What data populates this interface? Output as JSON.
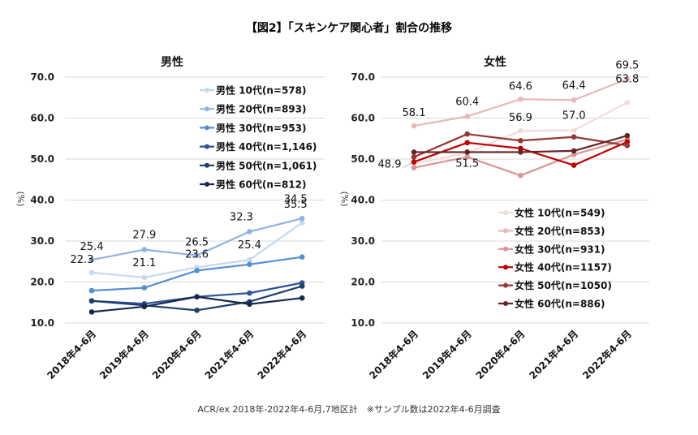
{
  "figure": {
    "title": "【図2】「スキンケア関心者」割合の推移",
    "footnote": "ACR/ex 2018年-2022年4-6月,7地区計　※サンプル数は2022年4-6月調査"
  },
  "chart_data": [
    {
      "type": "line",
      "title": "男性",
      "ylabel": "(%)",
      "xlabel": "",
      "ylim": [
        10,
        70
      ],
      "yticks": [
        "10.0",
        "20.0",
        "30.0",
        "40.0",
        "50.0",
        "60.0",
        "70.0"
      ],
      "grid": true,
      "legend": "top-right",
      "categories": [
        "2018年4-6月",
        "2019年4-6月",
        "2020年4-6月",
        "2021年4-6月",
        "2022年4-6月"
      ],
      "series": [
        {
          "name": "男性 10代(n=578)",
          "color": "#c5d9f1",
          "values": [
            22.3,
            21.1,
            23.6,
            25.4,
            34.5
          ],
          "labels": [
            "22.3",
            "21.1",
            "23.6",
            "25.4",
            "34.5"
          ]
        },
        {
          "name": "男性 20代(n=893)",
          "color": "#8eb4e3",
          "values": [
            25.4,
            27.9,
            26.5,
            32.3,
            35.5
          ],
          "labels": [
            "25.4",
            "27.9",
            "26.5",
            "32.3",
            "35.5"
          ]
        },
        {
          "name": "男性 30代(n=953)",
          "color": "#558ed5",
          "values": [
            17.9,
            18.6,
            22.8,
            24.3,
            26.1
          ],
          "labels": []
        },
        {
          "name": "男性 40代(n=1,146)",
          "color": "#2e5597",
          "values": [
            15.4,
            14.7,
            16.4,
            17.3,
            19.8
          ],
          "labels": []
        },
        {
          "name": "男性 50代(n=1,061)",
          "color": "#1f3d6e",
          "values": [
            15.4,
            14.3,
            13.1,
            15.2,
            19.0
          ],
          "labels": []
        },
        {
          "name": "男性 60代(n=812)",
          "color": "#17284a",
          "values": [
            12.7,
            14.0,
            16.4,
            14.6,
            16.1
          ],
          "labels": []
        }
      ]
    },
    {
      "type": "line",
      "title": "女性",
      "ylabel": "(%)",
      "xlabel": "",
      "ylim": [
        10,
        70
      ],
      "yticks": [
        "10.0",
        "20.0",
        "30.0",
        "40.0",
        "50.0",
        "60.0",
        "70.0"
      ],
      "grid": true,
      "legend": "bottom-right",
      "categories": [
        "2018年4-6月",
        "2019年4-6月",
        "2020年4-6月",
        "2021年4-6月",
        "2022年4-6月"
      ],
      "series": [
        {
          "name": "女性 10代(n=549)",
          "color": "#f2dcdb",
          "values": [
            48.9,
            51.5,
            56.9,
            57.0,
            63.8
          ],
          "labels": [
            "48.9",
            "51.5",
            "56.9",
            "57.0",
            "63.8"
          ]
        },
        {
          "name": "女性 20代(n=853)",
          "color": "#e6b9b8",
          "values": [
            58.1,
            60.4,
            64.6,
            64.4,
            69.5
          ],
          "labels": [
            "58.1",
            "60.4",
            "64.6",
            "64.4",
            "69.5"
          ]
        },
        {
          "name": "女性 30代(n=931)",
          "color": "#d99694",
          "values": [
            47.9,
            50.5,
            46.0,
            51.1,
            54.8
          ],
          "labels": []
        },
        {
          "name": "女性 40代(n=1157)",
          "color": "#c00000",
          "values": [
            49.3,
            54.0,
            52.6,
            48.5,
            54.2
          ],
          "labels": []
        },
        {
          "name": "女性 50代(n=1050)",
          "color": "#953735",
          "values": [
            50.5,
            56.1,
            54.5,
            55.4,
            53.3
          ],
          "labels": []
        },
        {
          "name": "女性 60代(n=886)",
          "color": "#632523",
          "values": [
            51.7,
            51.7,
            51.7,
            52.0,
            55.7
          ],
          "labels": []
        }
      ]
    }
  ]
}
